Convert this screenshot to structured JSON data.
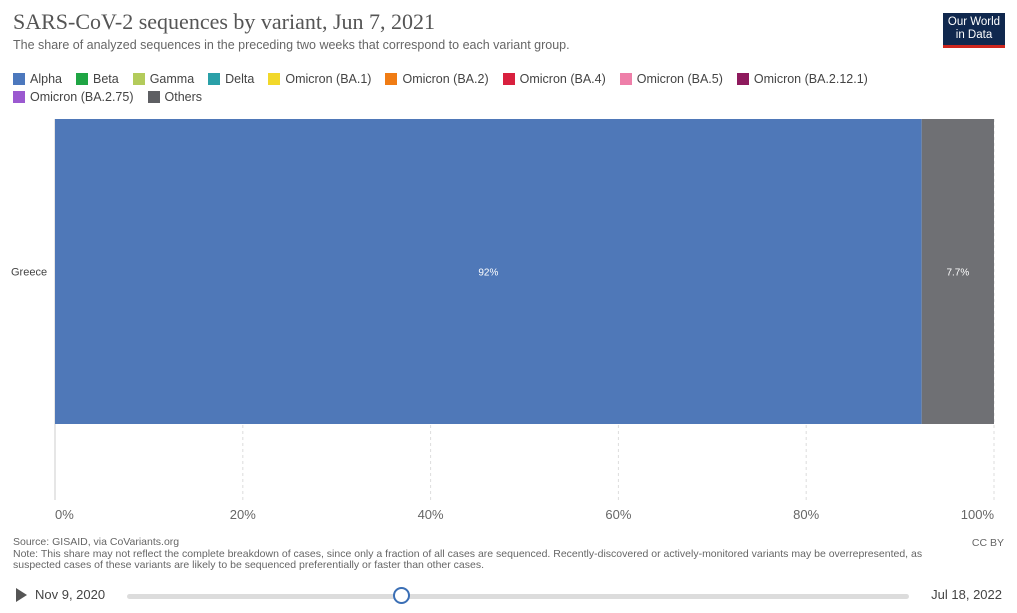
{
  "header": {
    "title": "SARS-CoV-2 sequences by variant, Jun 7, 2021",
    "subtitle": "The share of analyzed sequences in the preceding two weeks that correspond to each variant group."
  },
  "logo": {
    "line1": "Our World",
    "line2": "in Data"
  },
  "legend": [
    {
      "name": "Alpha",
      "color": "#4c78bd"
    },
    {
      "name": "Beta",
      "color": "#1fa544"
    },
    {
      "name": "Gamma",
      "color": "#b3cb5b"
    },
    {
      "name": "Delta",
      "color": "#2aa0a8"
    },
    {
      "name": "Omicron (BA.1)",
      "color": "#f2d82a"
    },
    {
      "name": "Omicron (BA.2)",
      "color": "#f07c14"
    },
    {
      "name": "Omicron (BA.4)",
      "color": "#d8203e"
    },
    {
      "name": "Omicron (BA.5)",
      "color": "#ee7fa9"
    },
    {
      "name": "Omicron (BA.2.12.1)",
      "color": "#8e1a5d"
    },
    {
      "name": "Omicron (BA.2.75)",
      "color": "#9b59d0"
    },
    {
      "name": "Others",
      "color": "#5e5f63"
    }
  ],
  "chart_data": {
    "type": "bar",
    "orientation": "horizontal",
    "stacked": true,
    "categories": [
      "Greece"
    ],
    "series": [
      {
        "name": "Alpha",
        "values": [
          92.3
        ],
        "label": "92%",
        "color": "#4f78b8"
      },
      {
        "name": "Others",
        "values": [
          7.7
        ],
        "label": "7.7%",
        "color": "#6f7074"
      }
    ],
    "xlim": [
      0,
      100
    ],
    "x_ticks": [
      "0%",
      "20%",
      "40%",
      "60%",
      "80%",
      "100%"
    ],
    "x_tick_values": [
      0,
      20,
      40,
      60,
      80,
      100
    ],
    "grid": true,
    "legend_position": "top-left"
  },
  "footer": {
    "source": "Source: GISAID, via CoVariants.org",
    "note_line1": "Note: This share may not reflect the complete breakdown of cases, since only a fraction of all cases are sequenced. Recently-discovered or actively-monitored variants may be overrepresented, as",
    "note_line2": "suspected cases of these variants are likely to be sequenced preferentially or faster than other cases.",
    "license": "CC BY"
  },
  "timeline": {
    "start_label": "Nov 9, 2020",
    "end_label": "Jul 18, 2022",
    "play_icon": "play-icon",
    "position_fraction": 0.35
  }
}
